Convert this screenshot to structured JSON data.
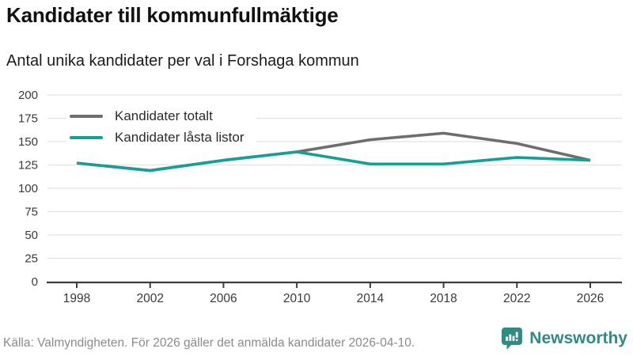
{
  "header": {
    "title": "Kandidater till kommunfullmäktige",
    "subtitle": "Antal unika kandidater per val i Forshaga kommun"
  },
  "chart_data": {
    "type": "line",
    "title": "Kandidater till kommunfullmäktige",
    "subtitle": "Antal unika kandidater per val i Forshaga kommun",
    "categories": [
      "1998",
      "2002",
      "2006",
      "2010",
      "2014",
      "2018",
      "2022",
      "2026"
    ],
    "series": [
      {
        "name": "Kandidater totalt",
        "color": "#6e6e6e",
        "values": [
          127,
          119,
          130,
          139,
          152,
          159,
          148,
          130
        ]
      },
      {
        "name": "Kandidater låsta listor",
        "color": "#14a096",
        "values": [
          127,
          119,
          130,
          139,
          126,
          126,
          133,
          130
        ]
      }
    ],
    "xlabel": "",
    "ylabel": "",
    "ylim": [
      0,
      200
    ],
    "ytick_step": 25,
    "yticks": [
      0,
      25,
      50,
      75,
      100,
      125,
      150,
      175,
      200
    ],
    "grid": "horizontal",
    "legend_position": "top-left"
  },
  "footer": {
    "source": "Källa: Valmyndigheten. För 2026 gäller det anmälda kandidater 2026-04-10.",
    "brand": "Newsworthy"
  },
  "colors": {
    "accent_teal": "#14a096",
    "line_gray": "#6e6e6e",
    "brand_teal": "#2f8c82",
    "grid": "#e2e2e2",
    "axis": "#3d3d3d",
    "tick_text": "#3a3a3a",
    "text_dark": "#111111",
    "text_muted": "#8b8b8b"
  }
}
